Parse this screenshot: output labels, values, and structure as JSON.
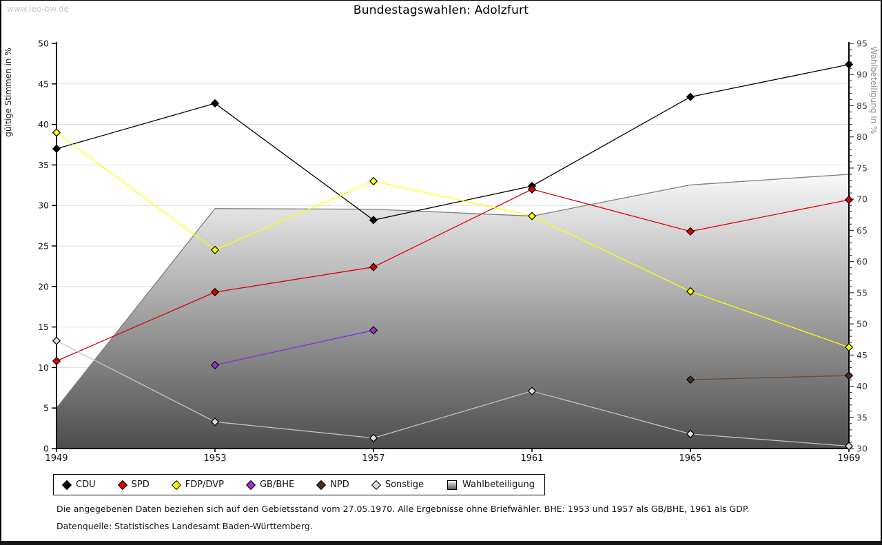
{
  "page": {
    "watermark": "www.leo-bw.de",
    "title": "Bundestagswahlen: Adolzfurt"
  },
  "chart_data": {
    "type": "line",
    "title": "Bundestagswahlen: Adolzfurt",
    "categories": [
      "1949",
      "1953",
      "1957",
      "1961",
      "1965",
      "1969"
    ],
    "left_axis": {
      "label": "gültige Stimmen in %",
      "min": 0,
      "max": 50,
      "step": 5
    },
    "right_axis": {
      "label": "Wahlbeteiligung in %",
      "min": 30,
      "max": 95,
      "step": 5,
      "minor_step": 1
    },
    "grid": true,
    "legend_position": "bottom",
    "series": [
      {
        "name": "CDU",
        "kind": "line",
        "axis": "left",
        "color": "#000000",
        "marker_fill": "#000000",
        "values": [
          37.0,
          42.6,
          28.2,
          32.4,
          43.4,
          47.4
        ]
      },
      {
        "name": "SPD",
        "kind": "line",
        "axis": "left",
        "color": "#dd0000",
        "marker_fill": "#dd0000",
        "values": [
          10.8,
          19.3,
          22.4,
          32.0,
          26.8,
          30.7
        ]
      },
      {
        "name": "FDP/DVP",
        "kind": "line",
        "axis": "left",
        "color": "#ffff00",
        "marker_fill": "#ffff00",
        "values": [
          39.0,
          24.5,
          33.0,
          28.7,
          19.4,
          12.5
        ]
      },
      {
        "name": "GB/BHE",
        "kind": "line",
        "axis": "left",
        "color": "#8a2be2",
        "marker_fill": "#9932cc",
        "values": [
          null,
          10.3,
          14.6,
          null,
          null,
          null
        ]
      },
      {
        "name": "NPD",
        "kind": "line",
        "axis": "left",
        "color": "#6d4a2f",
        "marker_fill": "#4e2f1a",
        "values": [
          null,
          null,
          null,
          null,
          8.5,
          9.0
        ]
      },
      {
        "name": "Sonstige",
        "kind": "line",
        "axis": "left",
        "color": "#c4c4c4",
        "marker_fill": "#dcdcdc",
        "values": [
          13.3,
          3.3,
          1.3,
          7.1,
          1.8,
          0.3
        ]
      },
      {
        "name": "Wahlbeteiligung",
        "kind": "area",
        "axis": "right",
        "color": "#7d7d7d",
        "marker_fill": "none",
        "values": [
          36.5,
          68.5,
          68.4,
          67.3,
          72.3,
          74.0
        ]
      }
    ]
  },
  "footer": {
    "line1": "Die angegebenen Daten beziehen sich auf den Gebietsstand vom 27.05.1970. Alle Ergebnisse ohne Briefwähler. BHE: 1953 und 1957 als GB/BHE, 1961 als GDP.",
    "line2": "Datenquelle: Statistisches Landesamt Baden-Württemberg."
  }
}
